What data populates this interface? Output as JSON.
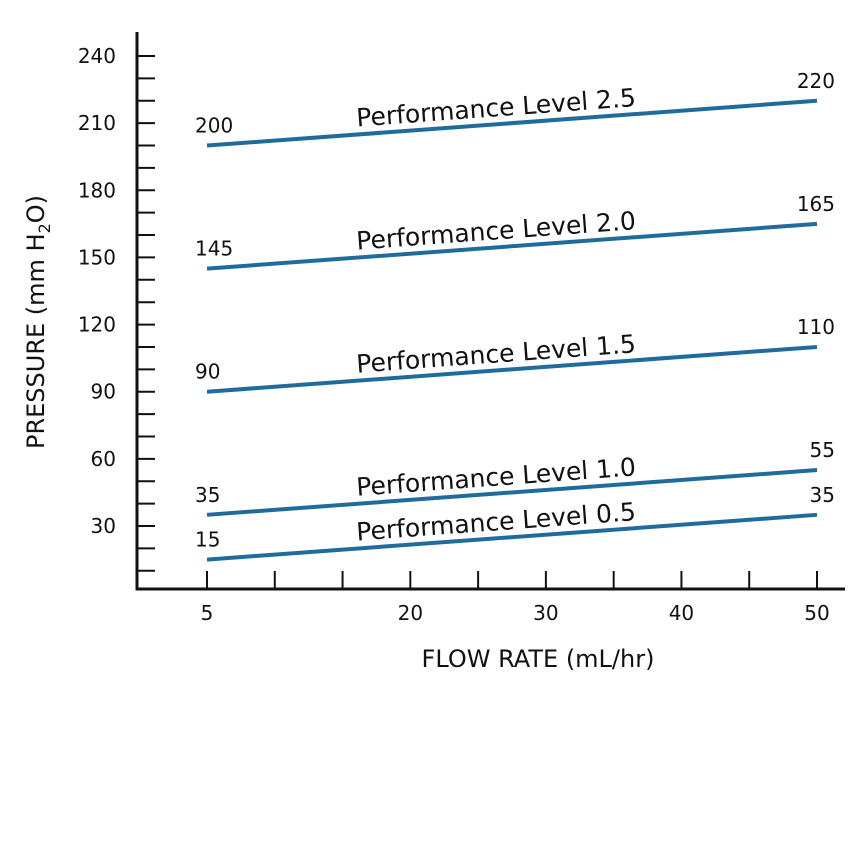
{
  "chart_data": {
    "type": "line",
    "title": "",
    "xlabel": "FLOW RATE (mL/hr)",
    "ylabel": {
      "prefix": "PRESSURE (mm H",
      "subscript": "2",
      "suffix": "O)"
    },
    "xlim": [
      0,
      50
    ],
    "ylim": [
      0,
      250
    ],
    "x_ticks": [
      5,
      10,
      15,
      20,
      25,
      30,
      35,
      40,
      45,
      50
    ],
    "x_tick_labels": [
      "5",
      "20",
      "30",
      "40",
      "50"
    ],
    "x_tick_label_values": [
      5,
      20,
      30,
      40,
      50
    ],
    "y_ticks": [
      10,
      20,
      30,
      40,
      50,
      60,
      70,
      80,
      90,
      100,
      110,
      120,
      130,
      140,
      150,
      160,
      170,
      180,
      190,
      200,
      210,
      220,
      230,
      240
    ],
    "y_tick_labels": [
      "30",
      "60",
      "90",
      "120",
      "150",
      "180",
      "210",
      "240"
    ],
    "y_tick_label_values": [
      30,
      60,
      90,
      120,
      150,
      180,
      210,
      240
    ],
    "series_color": "#1f6c9c",
    "series": [
      {
        "name": "Performance Level 0.5",
        "x": [
          5,
          50
        ],
        "values": [
          15,
          35
        ],
        "start_label": "15",
        "end_label": "35"
      },
      {
        "name": "Performance Level 1.0",
        "x": [
          5,
          50
        ],
        "values": [
          35,
          55
        ],
        "start_label": "35",
        "end_label": "55"
      },
      {
        "name": "Performance Level 1.5",
        "x": [
          5,
          50
        ],
        "values": [
          90,
          110
        ],
        "start_label": "90",
        "end_label": "110"
      },
      {
        "name": "Performance Level 2.0",
        "x": [
          5,
          50
        ],
        "values": [
          145,
          165
        ],
        "start_label": "145",
        "end_label": "165"
      },
      {
        "name": "Performance Level 2.5",
        "x": [
          5,
          50
        ],
        "values": [
          200,
          220
        ],
        "start_label": "200",
        "end_label": "220"
      }
    ]
  }
}
